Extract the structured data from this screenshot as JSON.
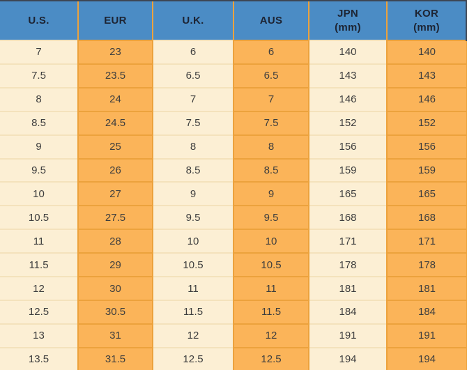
{
  "chart_data": {
    "type": "table",
    "columns": [
      {
        "key": "us",
        "label": "U.S.",
        "sub": ""
      },
      {
        "key": "eur",
        "label": "EUR",
        "sub": ""
      },
      {
        "key": "uk",
        "label": "U.K.",
        "sub": ""
      },
      {
        "key": "aus",
        "label": "AUS",
        "sub": ""
      },
      {
        "key": "jpn",
        "label": "JPN",
        "sub": "(mm)"
      },
      {
        "key": "kor",
        "label": "KOR",
        "sub": "(mm)"
      }
    ],
    "rows": [
      [
        "7",
        "23",
        "6",
        "6",
        "140",
        "140"
      ],
      [
        "7.5",
        "23.5",
        "6.5",
        "6.5",
        "143",
        "143"
      ],
      [
        "8",
        "24",
        "7",
        "7",
        "146",
        "146"
      ],
      [
        "8.5",
        "24.5",
        "7.5",
        "7.5",
        "152",
        "152"
      ],
      [
        "9",
        "25",
        "8",
        "8",
        "156",
        "156"
      ],
      [
        "9.5",
        "26",
        "8.5",
        "8.5",
        "159",
        "159"
      ],
      [
        "10",
        "27",
        "9",
        "9",
        "165",
        "165"
      ],
      [
        "10.5",
        "27.5",
        "9.5",
        "9.5",
        "168",
        "168"
      ],
      [
        "11",
        "28",
        "10",
        "10",
        "171",
        "171"
      ],
      [
        "11.5",
        "29",
        "10.5",
        "10.5",
        "178",
        "178"
      ],
      [
        "12",
        "30",
        "11",
        "11",
        "181",
        "181"
      ],
      [
        "12.5",
        "30.5",
        "11.5",
        "11.5",
        "184",
        "184"
      ],
      [
        "13",
        "31",
        "12",
        "12",
        "191",
        "191"
      ],
      [
        "13.5",
        "31.5",
        "12.5",
        "12.5",
        "194",
        "194"
      ]
    ]
  },
  "colors": {
    "header_bg": "#4b8cc5",
    "header_text": "#1d2433",
    "cream": "#fcefd4",
    "orange": "#fbb459",
    "border_orange": "#eca23d",
    "border_cream": "#f4e2bc",
    "cell_text": "#3e3e3e",
    "dark_edge": "#3d4654"
  }
}
